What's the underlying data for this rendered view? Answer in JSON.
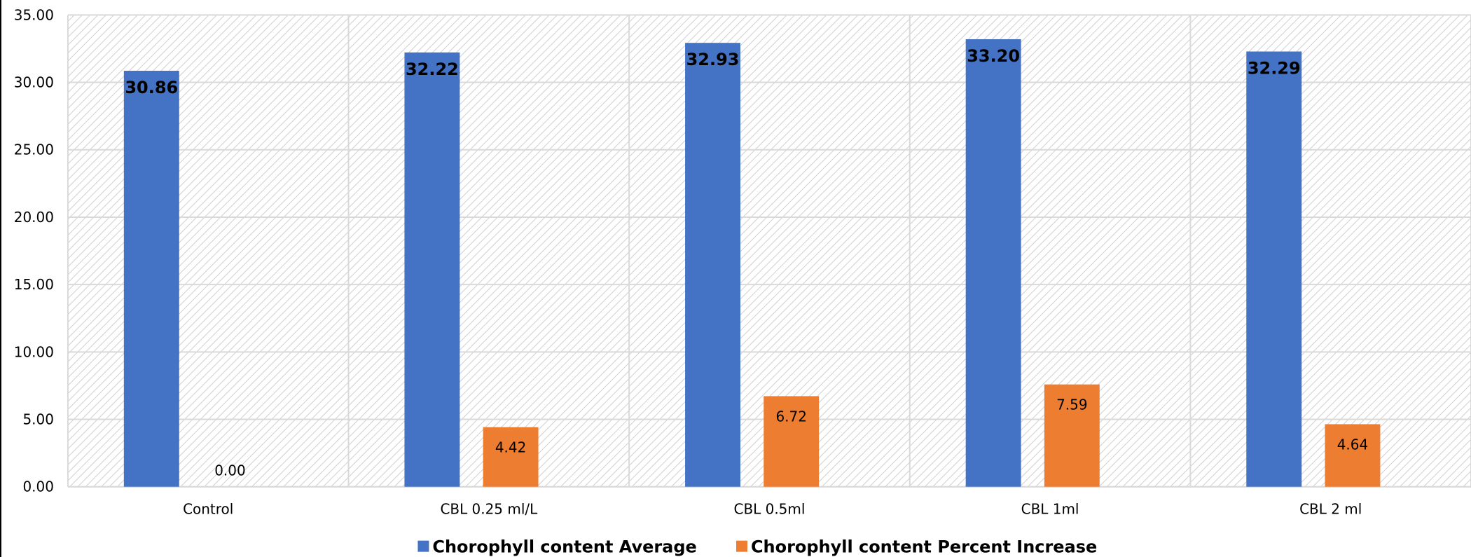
{
  "chart_data": {
    "type": "bar",
    "categories": [
      "Control",
      "CBL 0.25 ml/L",
      "CBL 0.5ml",
      "CBL 1ml",
      "CBL 2 ml"
    ],
    "series": [
      {
        "name": "Chorophyll content Average",
        "values": [
          30.86,
          32.22,
          32.93,
          33.2,
          32.29
        ],
        "labels": [
          "30.86",
          "32.22",
          "32.93",
          "33.20",
          "32.29"
        ],
        "color": "#4472C4"
      },
      {
        "name": "Chorophyll content Percent Increase",
        "values": [
          0.0,
          4.42,
          6.72,
          7.59,
          4.64
        ],
        "labels": [
          "0.00",
          "4.42",
          "6.72",
          "7.59",
          "4.64"
        ],
        "color": "#ED7D31"
      }
    ],
    "y_ticks": [
      "0.00",
      "5.00",
      "10.00",
      "15.00",
      "20.00",
      "25.00",
      "30.00",
      "35.00"
    ],
    "ylim": [
      0,
      35
    ],
    "grid": true,
    "legend_position": "bottom"
  }
}
